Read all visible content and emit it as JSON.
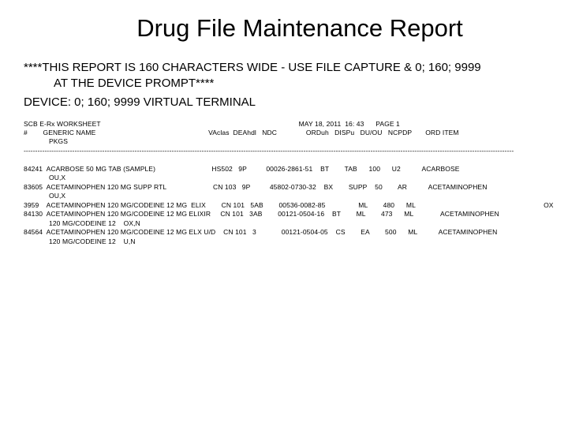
{
  "title": "Drug File Maintenance Report",
  "notice_line1": "****THIS REPORT IS 160 CHARACTERS WIDE - USE FILE CAPTURE & 0; 160; 9999",
  "notice_line2": "AT THE DEVICE PROMPT****",
  "device_line": "DEVICE: 0; 160; 9999  VIRTUAL TERMINAL",
  "report": {
    "header_left": "SCB E-Rx WORKSHEET",
    "header_right": "MAY 18, 2011  16: 43      PAGE 1",
    "col_line1": "#        GENERIC NAME                                                          VAclas  DEAhdl   NDC               ORDuh   DISPu   DU/OU   NCPDP       ORD ITEM",
    "col_line2": "             PKGS",
    "divider": "--------------------------------------------------------------------------------------------------------------------------------------------------------------------------------------------------------------------",
    "rows": [
      "84241  ACARBOSE 50 MG TAB (SAMPLE)                             HS502   9P          00026-2861-51    BT        TAB      100      U2           ACARBOSE",
      "             OU,X",
      "83605  ACETAMINOPHEN 120 MG SUPP RTL                        CN 103   9P          45802-0730-32    BX        SUPP    50        AR           ACETAMINOPHEN",
      "             OU,X",
      "3959    ACETAMINOPHEN 120 MG/CODEINE 12 MG  ELIX        CN 101   5AB        00536-0082-85                 ML        480      ML                                                                  OX",
      "84130  ACETAMINOPHEN 120 MG/CODEINE 12 MG ELIXIR     CN 101   3AB        00121-0504-16    BT        ML        473      ML              ACETAMINOPHEN",
      "             120 MG/CODEINE 12    OX,N",
      "84564  ACETAMINOPHEN 120 MG/CODEINE 12 MG ELX U/D    CN 101   3             00121-0504-05    CS        EA        500      ML           ACETAMINOPHEN",
      "             120 MG/CODEINE 12    U,N"
    ]
  },
  "style": {
    "background_color": "#ffffff",
    "text_color": "#000000",
    "title_fontsize": 31,
    "body_fontsize": 15,
    "mono_fontsize": 8.5
  }
}
